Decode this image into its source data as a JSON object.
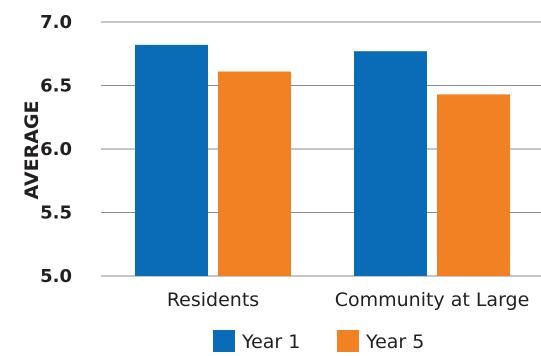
{
  "chart_data": {
    "type": "bar",
    "title": "",
    "xlabel": "",
    "ylabel": "AVERAGE",
    "ylim": [
      5.0,
      7.0
    ],
    "yticks": [
      "5.0",
      "5.5",
      "6.0",
      "6.5",
      "7.0"
    ],
    "categories": [
      "Residents",
      "Community at Large"
    ],
    "series": [
      {
        "name": "Year 1",
        "color": "#0a6cb6",
        "values": [
          6.82,
          6.77
        ]
      },
      {
        "name": "Year 5",
        "color": "#f28124",
        "values": [
          6.61,
          6.43
        ]
      }
    ],
    "grid": true,
    "legend_position": "bottom"
  }
}
